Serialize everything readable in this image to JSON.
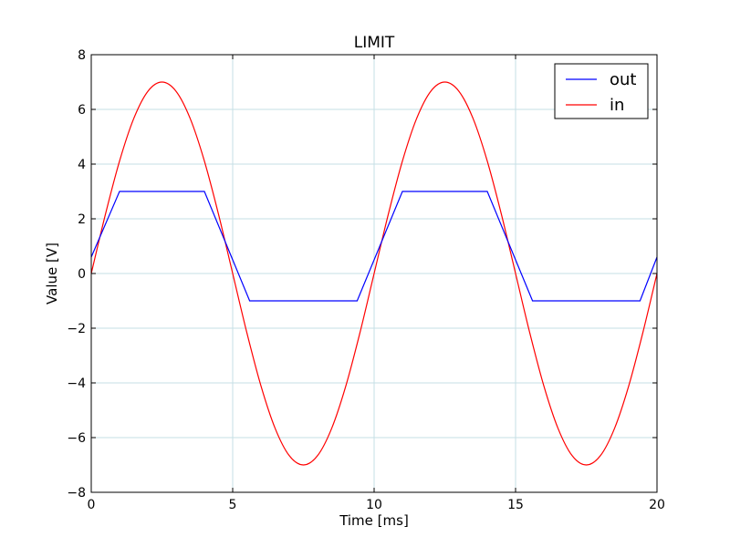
{
  "chart_data": {
    "type": "line",
    "title": "LIMIT",
    "xlabel": "Time  [ms]",
    "ylabel": "Value [V]",
    "xlim": [
      0,
      20
    ],
    "ylim": [
      -8,
      8
    ],
    "xticks": [
      0,
      5,
      10,
      15,
      20
    ],
    "yticks": [
      -8,
      -6,
      -4,
      -2,
      0,
      2,
      4,
      6,
      8
    ],
    "xtick_labels": [
      "0",
      "5",
      "10",
      "15",
      "20"
    ],
    "ytick_labels": [
      "−8",
      "−6",
      "−4",
      "−2",
      "0",
      "2",
      "4",
      "6",
      "8"
    ],
    "grid": true,
    "legend_position": "top-right",
    "series": [
      {
        "name": "out",
        "color": "#0000ff",
        "x": [
          0,
          1,
          4,
          5.6,
          9.4,
          11,
          14,
          15.6,
          19.4,
          20
        ],
        "y": [
          0.6,
          3.0,
          3.0,
          -1.0,
          -1.0,
          3.0,
          3.0,
          -1.0,
          -1.0,
          0.6
        ]
      },
      {
        "name": "in",
        "color": "#ff0000",
        "x": [
          0,
          0.5,
          1,
          1.5,
          2,
          2.5,
          3,
          3.5,
          4,
          4.5,
          5,
          5.5,
          6,
          6.5,
          7,
          7.5,
          8,
          8.5,
          9,
          9.5,
          10,
          10.5,
          11,
          11.5,
          12,
          12.5,
          13,
          13.5,
          14,
          14.5,
          15,
          15.5,
          16,
          16.5,
          17,
          17.5,
          18,
          18.5,
          19,
          19.5,
          20
        ],
        "y": [
          0,
          2.16,
          4.11,
          5.66,
          6.66,
          7.0,
          6.66,
          5.66,
          4.11,
          2.16,
          0,
          -2.16,
          -4.11,
          -5.66,
          -6.66,
          -7.0,
          -6.66,
          -5.66,
          -4.11,
          -2.16,
          0,
          2.16,
          4.11,
          5.66,
          6.66,
          7.0,
          6.66,
          5.66,
          4.11,
          2.16,
          0,
          -2.16,
          -4.11,
          -5.66,
          -6.66,
          -7.0,
          -6.66,
          -5.66,
          -4.11,
          -2.16,
          0
        ]
      }
    ]
  }
}
